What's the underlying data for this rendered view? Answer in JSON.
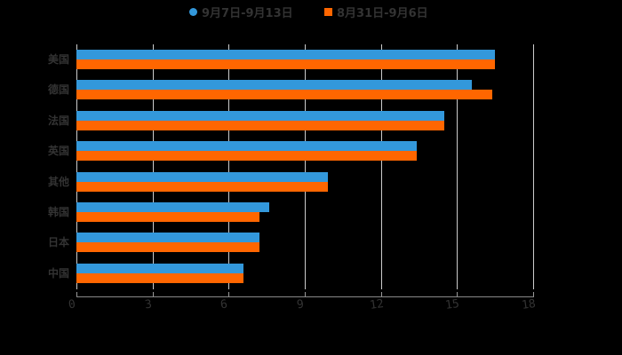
{
  "chart_data": {
    "type": "bar",
    "orientation": "horizontal",
    "title": "",
    "xlabel": "",
    "ylabel": "",
    "categories": [
      "美国",
      "德国",
      "法国",
      "英国",
      "其他",
      "韩国",
      "日本",
      "中国"
    ],
    "series": [
      {
        "name": "9月7日-9月13日",
        "color": "#3398DB",
        "values": [
          16.5,
          15.6,
          14.5,
          13.4,
          9.9,
          7.6,
          7.2,
          6.6
        ]
      },
      {
        "name": "8月31日-9月6日",
        "color": "#FF6600",
        "values": [
          16.5,
          16.4,
          14.5,
          13.4,
          9.9,
          7.2,
          7.2,
          6.6
        ]
      }
    ],
    "xlim": [
      0,
      18
    ],
    "xticks": [
      "0",
      "3",
      "6",
      "9",
      "12",
      "15",
      "18"
    ],
    "grid": true,
    "legend_position": "top"
  },
  "legend": {
    "items": [
      {
        "label": "9月7日-9月13日",
        "color": "#3398DB",
        "shape": "circle"
      },
      {
        "label": "8月31日-9月6日",
        "color": "#FF6600",
        "shape": "square"
      }
    ]
  }
}
